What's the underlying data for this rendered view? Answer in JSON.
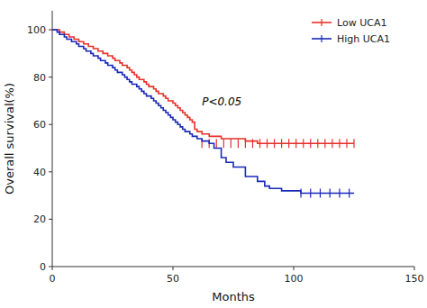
{
  "chart_data": {
    "type": "step",
    "title": "",
    "xlabel": "Months",
    "ylabel": "Overall survival(%)",
    "xlim": [
      0,
      150
    ],
    "ylim": [
      0,
      108
    ],
    "xticks": [
      0,
      50,
      100,
      150
    ],
    "yticks": [
      0,
      20,
      40,
      60,
      80,
      100
    ],
    "grid": false,
    "legend": "upper right",
    "annotations": [
      {
        "text": "P<0.05",
        "x": 62,
        "y": 68
      }
    ],
    "series": [
      {
        "name": "Low UCA1",
        "color": "#e8302a",
        "x": [
          0,
          2,
          3,
          4,
          5,
          6,
          7,
          8,
          9,
          10,
          11,
          12,
          13,
          14,
          15,
          16,
          17,
          18,
          19,
          20,
          21,
          22,
          23,
          24,
          25,
          26,
          27,
          28,
          29,
          30,
          31,
          32,
          33,
          34,
          35,
          36,
          37,
          38,
          39,
          40,
          41,
          42,
          43,
          44,
          45,
          46,
          47,
          48,
          49,
          50,
          51,
          52,
          53,
          54,
          55,
          56,
          57,
          58,
          59,
          60,
          62,
          65,
          70,
          75,
          80,
          85,
          90,
          95,
          100,
          105,
          110,
          115,
          120,
          125
        ],
        "values": [
          100,
          100,
          99,
          99,
          98,
          98,
          97,
          97,
          96,
          96,
          95,
          95,
          94,
          94,
          93,
          93,
          92,
          92,
          91,
          91,
          90,
          90,
          89,
          89,
          88,
          87,
          87,
          86,
          85,
          85,
          84,
          83,
          82,
          81,
          80,
          79,
          79,
          78,
          77,
          76,
          76,
          75,
          74,
          73,
          73,
          72,
          71,
          70,
          70,
          69,
          68,
          67,
          66,
          65,
          64,
          63,
          62,
          61,
          58,
          57,
          56,
          55,
          54,
          54,
          53,
          52,
          52,
          52,
          52,
          52,
          52,
          52,
          52,
          52
        ],
        "censor_x": [
          62,
          65,
          68,
          71,
          74,
          77,
          80,
          83,
          86,
          89,
          92,
          95,
          98,
          101,
          104,
          107,
          110,
          113,
          116,
          119,
          122,
          125
        ],
        "censor_y": [
          52,
          52,
          52,
          52,
          52,
          52,
          52,
          52,
          52,
          52,
          52,
          52,
          52,
          52,
          52,
          52,
          52,
          52,
          52,
          52,
          52,
          52
        ]
      },
      {
        "name": "High UCA1",
        "color": "#1a28b8",
        "x": [
          0,
          2,
          3,
          4,
          5,
          6,
          7,
          8,
          9,
          10,
          11,
          12,
          13,
          14,
          15,
          16,
          17,
          18,
          19,
          20,
          21,
          22,
          23,
          24,
          25,
          26,
          27,
          28,
          29,
          30,
          31,
          32,
          33,
          34,
          35,
          36,
          37,
          38,
          39,
          40,
          41,
          42,
          43,
          44,
          45,
          46,
          47,
          48,
          49,
          50,
          51,
          52,
          53,
          54,
          55,
          56,
          57,
          58,
          59,
          60,
          62,
          65,
          67,
          70,
          72,
          75,
          80,
          85,
          88,
          90,
          95,
          100,
          103,
          105,
          110,
          115,
          120,
          125
        ],
        "values": [
          100,
          99,
          98,
          98,
          97,
          96,
          96,
          95,
          95,
          94,
          93,
          93,
          92,
          91,
          91,
          90,
          89,
          89,
          88,
          87,
          87,
          86,
          85,
          85,
          84,
          83,
          82,
          82,
          81,
          80,
          79,
          78,
          77,
          77,
          76,
          75,
          74,
          73,
          72,
          72,
          71,
          70,
          69,
          68,
          67,
          66,
          65,
          64,
          63,
          62,
          61,
          60,
          59,
          58,
          57,
          57,
          56,
          55,
          55,
          54,
          53,
          52,
          50,
          46,
          44,
          42,
          38,
          36,
          34,
          33,
          32,
          32,
          31,
          31,
          31,
          31,
          31,
          31
        ],
        "censor_x": [
          103,
          107,
          111,
          115,
          119,
          123
        ],
        "censor_y": [
          31,
          31,
          31,
          31,
          31,
          31
        ]
      }
    ]
  }
}
